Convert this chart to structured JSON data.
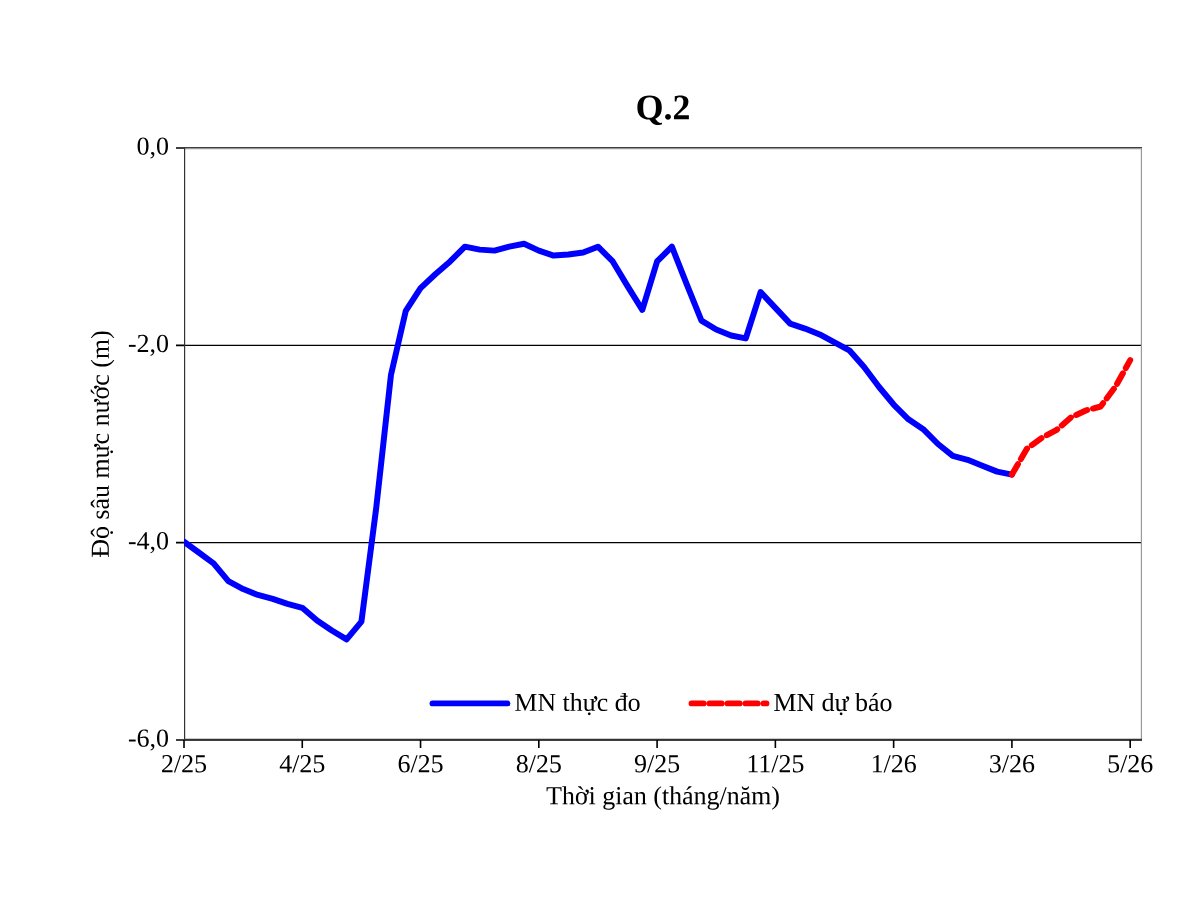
{
  "chart_data": {
    "type": "line",
    "title": "Q.2",
    "xlabel": "Thời gian (tháng/năm)",
    "ylabel": "Độ sâu mực nước (m)",
    "categories": [
      "2/25",
      null,
      null,
      null,
      null,
      null,
      null,
      null,
      "4/25",
      null,
      null,
      null,
      null,
      null,
      null,
      null,
      "6/25",
      null,
      null,
      null,
      null,
      null,
      null,
      null,
      "8/25",
      null,
      null,
      null,
      null,
      null,
      null,
      null,
      "9/25",
      null,
      null,
      null,
      null,
      null,
      null,
      null,
      "11/25",
      null,
      null,
      null,
      null,
      null,
      null,
      null,
      "1/26",
      null,
      null,
      null,
      null,
      null,
      null,
      null,
      "3/26",
      null,
      null,
      null,
      null,
      null,
      null,
      null,
      "5/26"
    ],
    "ylim": [
      -6,
      0
    ],
    "yticks": [
      {
        "value": -6,
        "label": "-6,0"
      },
      {
        "value": -4,
        "label": "-4,0"
      },
      {
        "value": -2,
        "label": "-2,0"
      },
      {
        "value": 0,
        "label": "0,0"
      }
    ],
    "grid": "y",
    "legend": "bottom",
    "series": [
      {
        "name": "MN thực đo",
        "color": "#0000ff",
        "line_style": "solid",
        "values": [
          -3.99,
          -4.1,
          -4.21,
          -4.39,
          -4.47,
          -4.53,
          -4.57,
          -4.62,
          -4.66,
          -4.79,
          -4.89,
          -4.98,
          -4.8,
          -3.65,
          -2.3,
          -1.65,
          -1.42,
          -1.28,
          -1.15,
          -1.0,
          -1.03,
          -1.04,
          -1.0,
          -0.97,
          -1.04,
          -1.09,
          -1.08,
          -1.06,
          -1.0,
          -1.15,
          -1.4,
          -1.64,
          -1.15,
          -1.0,
          -1.38,
          -1.75,
          -1.84,
          -1.9,
          -1.93,
          -1.46,
          -1.62,
          -1.78,
          -1.83,
          -1.89,
          -1.97,
          -2.05,
          -2.22,
          -2.42,
          -2.6,
          -2.75,
          -2.85,
          -3.0,
          -3.12,
          -3.16,
          -3.22,
          -3.28,
          -3.31,
          null,
          null,
          null,
          null,
          null,
          null,
          null,
          null
        ]
      },
      {
        "name": "MN dự báo",
        "color": "#ff0000",
        "line_style": "dashed",
        "values": [
          null,
          null,
          null,
          null,
          null,
          null,
          null,
          null,
          null,
          null,
          null,
          null,
          null,
          null,
          null,
          null,
          null,
          null,
          null,
          null,
          null,
          null,
          null,
          null,
          null,
          null,
          null,
          null,
          null,
          null,
          null,
          null,
          null,
          null,
          null,
          null,
          null,
          null,
          null,
          null,
          null,
          null,
          null,
          null,
          null,
          null,
          null,
          null,
          null,
          null,
          null,
          null,
          null,
          null,
          null,
          null,
          -3.31,
          -3.05,
          -2.94,
          -2.86,
          -2.73,
          -2.66,
          -2.62,
          -2.42,
          -2.15
        ]
      }
    ]
  }
}
